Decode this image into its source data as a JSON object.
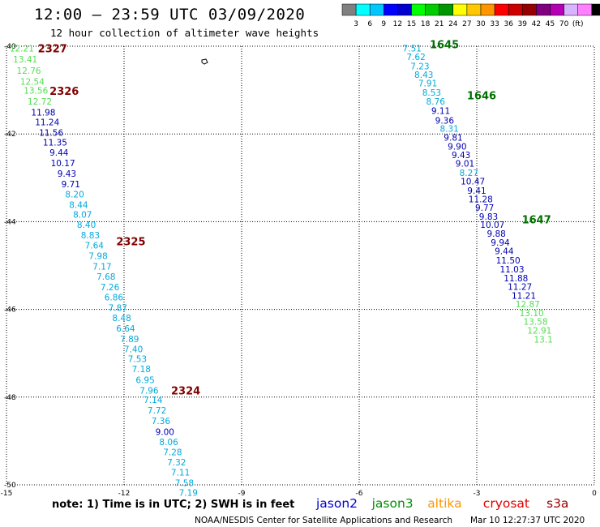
{
  "title": "12:00 – 23:59 UTC 03/09/2020",
  "subtitle": "12 hour collection of altimeter wave heights",
  "color_scale": {
    "colors": [
      "#808080",
      "#00ffff",
      "#00c8ff",
      "#0000ff",
      "#0000cd",
      "#00ff00",
      "#00cd00",
      "#009600",
      "#ffff00",
      "#ffc800",
      "#ff9600",
      "#ff0000",
      "#cd0000",
      "#960000",
      "#800080",
      "#b400b4",
      "#d8b4ff",
      "#ff80ff",
      "#000000"
    ],
    "labels": [
      "3",
      "6",
      "9",
      "12",
      "15",
      "18",
      "21",
      "24",
      "27",
      "30",
      "33",
      "36",
      "39",
      "42",
      "45",
      "70",
      "(ft)"
    ]
  },
  "chart_data": {
    "type": "scatter",
    "title": "12 hour collection of altimeter wave heights",
    "xlim": [
      -15,
      0
    ],
    "ylim": [
      -50,
      -40
    ],
    "xticks": [
      "-15",
      "-12",
      "-9",
      "-6",
      "-3",
      "0"
    ],
    "yticks": [
      "-40",
      "-42",
      "-44",
      "-46",
      "-48",
      "-50"
    ],
    "track_west": {
      "labels": [
        "12.21",
        "13.41",
        "12.76",
        "12.54",
        "13.56",
        "12.72",
        "11.98",
        "11.24",
        "11.56",
        "11.35",
        "9.44",
        "10.17",
        "9.43",
        "9.71",
        "8.20",
        "8.44",
        "8.07",
        "8.40",
        "8.83",
        "7.64",
        "7.98",
        "7.17",
        "7.68",
        "7.26",
        "6.86",
        "7.87",
        "8.48",
        "6.64",
        "7.89",
        "7.40",
        "7.53",
        "7.18",
        "6.95",
        "7.96",
        "7.14",
        "7.72",
        "7.36",
        "9.00",
        "8.06",
        "7.28",
        "7.32",
        "7.11",
        "7.58",
        "7.19"
      ],
      "x": [
        -14.61,
        -14.52,
        -14.43,
        -14.34,
        -14.25,
        -14.15,
        -14.06,
        -13.96,
        -13.86,
        -13.76,
        -13.66,
        -13.56,
        -13.46,
        -13.36,
        -13.26,
        -13.16,
        -13.06,
        -12.96,
        -12.86,
        -12.76,
        -12.66,
        -12.56,
        -12.46,
        -12.36,
        -12.26,
        -12.16,
        -12.06,
        -11.96,
        -11.86,
        -11.76,
        -11.66,
        -11.56,
        -11.46,
        -11.36,
        -11.26,
        -11.16,
        -11.06,
        -10.96,
        -10.86,
        -10.76,
        -10.66,
        -10.56,
        -10.46,
        -10.36
      ],
      "y": [
        -40.05,
        -40.3,
        -40.55,
        -40.8,
        -41.01,
        -41.26,
        -41.51,
        -41.73,
        -41.97,
        -42.19,
        -42.42,
        -42.66,
        -42.9,
        -43.14,
        -43.37,
        -43.61,
        -43.84,
        -44.07,
        -44.31,
        -44.54,
        -44.78,
        -45.02,
        -45.25,
        -45.49,
        -45.72,
        -45.96,
        -46.19,
        -46.43,
        -46.67,
        -46.9,
        -47.13,
        -47.36,
        -47.61,
        -47.85,
        -48.06,
        -48.3,
        -48.54,
        -48.79,
        -49.02,
        -49.25,
        -49.48,
        -49.71,
        -49.95,
        -50.18
      ]
    },
    "track_east": {
      "labels": [
        "7.51",
        "7.62",
        "7.23",
        "8.43",
        "7.91",
        "8.53",
        "8.76",
        "9.11",
        "9.36",
        "8.31",
        "9.81",
        "9.90",
        "9.43",
        "9.01",
        "8.27",
        "10.47",
        "9.41",
        "11.28",
        "9.77",
        "9.83",
        "10.07",
        "9.88",
        "9.94",
        "9.44",
        "11.50",
        "11.03",
        "11.88",
        "11.27",
        "11.21",
        "12.87",
        "13.10",
        "13.58",
        "12.91",
        "13.1"
      ],
      "x": [
        -4.65,
        -4.55,
        -4.45,
        -4.35,
        -4.25,
        -4.15,
        -4.05,
        -3.92,
        -3.82,
        -3.7,
        -3.6,
        -3.5,
        -3.4,
        -3.3,
        -3.2,
        -3.1,
        -3.0,
        -2.9,
        -2.8,
        -2.7,
        -2.6,
        -2.5,
        -2.4,
        -2.3,
        -2.2,
        -2.1,
        -2.0,
        -1.9,
        -1.8,
        -1.7,
        -1.6,
        -1.5,
        -1.4,
        -1.3
      ],
      "y": [
        -40.05,
        -40.24,
        -40.45,
        -40.65,
        -40.84,
        -41.05,
        -41.26,
        -41.47,
        -41.69,
        -41.88,
        -42.08,
        -42.28,
        -42.48,
        -42.67,
        -42.88,
        -43.08,
        -43.29,
        -43.48,
        -43.68,
        -43.88,
        -44.07,
        -44.27,
        -44.47,
        -44.67,
        -44.88,
        -45.08,
        -45.29,
        -45.48,
        -45.68,
        -45.88,
        -46.08,
        -46.28,
        -46.48,
        -46.68
      ]
    },
    "pass_labels": [
      {
        "text": "2327",
        "x": -14.2,
        "y": -40.05,
        "color": "#800000"
      },
      {
        "text": "2326",
        "x": -13.9,
        "y": -41.02,
        "color": "#800000"
      },
      {
        "text": "2325",
        "x": -12.2,
        "y": -44.45,
        "color": "#800000"
      },
      {
        "text": "2324",
        "x": -10.8,
        "y": -47.85,
        "color": "#800000"
      },
      {
        "text": "1645",
        "x": -4.2,
        "y": -39.95,
        "color": "#007000"
      },
      {
        "text": "1646",
        "x": -3.25,
        "y": -41.12,
        "color": "#007000"
      },
      {
        "text": "1647",
        "x": -1.85,
        "y": -43.95,
        "color": "#007000"
      }
    ]
  },
  "footer": {
    "note": "note:  1) Time is in UTC;  2) SWH is in feet",
    "satellites": [
      {
        "name": "jason2",
        "color": "#0000d0"
      },
      {
        "name": "jason3",
        "color": "#009000"
      },
      {
        "name": "altika",
        "color": "#ff9600"
      },
      {
        "name": "cryosat",
        "color": "#e00000"
      },
      {
        "name": "s3a",
        "color": "#a00000"
      }
    ],
    "credit": "NOAA/NESDIS Center for Satellite Applications and Research",
    "timestamp": "Mar 10 12:27:37 UTC 2020"
  }
}
